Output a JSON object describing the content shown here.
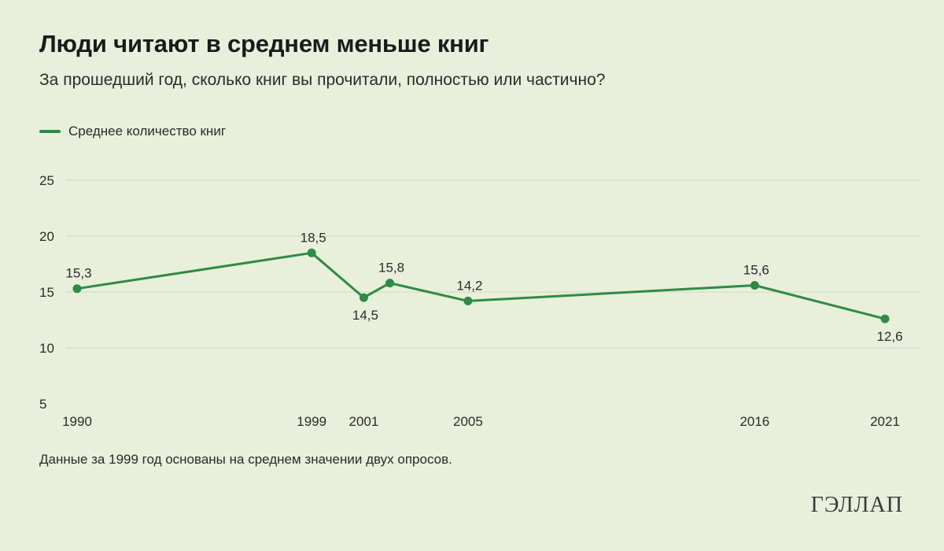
{
  "colors": {
    "background": "#e8f0db",
    "line": "#2e8b46",
    "grid": "#d7dfca"
  },
  "header": {
    "title": "Люди читают в среднем меньше книг",
    "subtitle": "За прошедший год, сколько книг вы прочитали, полностью или частично?"
  },
  "legend": {
    "label": "Среднее количество книг"
  },
  "chart_data": {
    "type": "line",
    "title": "Люди читают в среднем меньше книг",
    "subtitle": "За прошедший год, сколько книг вы прочитали, полностью или частично?",
    "ylim": [
      5,
      25
    ],
    "yticks": [
      5,
      10,
      15,
      20,
      25
    ],
    "grid": true,
    "legend_position": "top-left",
    "x_ticks": [
      "1990",
      "1999",
      "2001",
      "2005",
      "2016",
      "2021"
    ],
    "series": [
      {
        "name": "Среднее количество книг",
        "color": "#2e8b46",
        "points": [
          {
            "x": 1990,
            "y": 15.3,
            "label": "15,3",
            "label_position": "above"
          },
          {
            "x": 1999,
            "y": 18.5,
            "label": "18,5",
            "label_position": "above"
          },
          {
            "x": 2001,
            "y": 14.5,
            "label": "14,5",
            "label_position": "below"
          },
          {
            "x": 2002,
            "y": 15.8,
            "label": "15,8",
            "label_position": "above"
          },
          {
            "x": 2005,
            "y": 14.2,
            "label": "14,2",
            "label_position": "above"
          },
          {
            "x": 2016,
            "y": 15.6,
            "label": "15,6",
            "label_position": "above"
          },
          {
            "x": 2021,
            "y": 12.6,
            "label": "12,6",
            "label_position": "below"
          }
        ]
      }
    ]
  },
  "footer": {
    "note": "Данные за 1999 год основаны на среднем значении двух опросов.",
    "brand": "ГЭЛЛАП"
  }
}
